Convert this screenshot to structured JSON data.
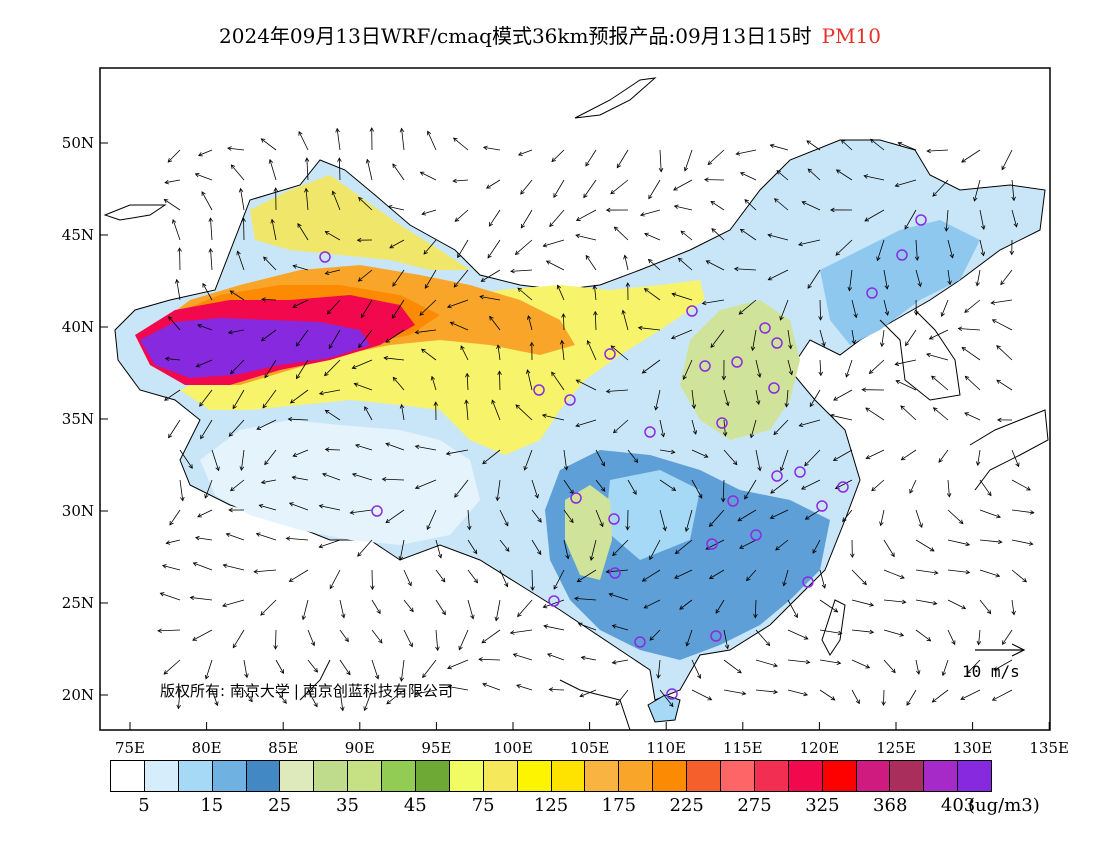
{
  "header": {
    "title": "2024年09月13日WRF/cmaq模式36km预报产品:09月13日15时",
    "pollutant": "PM10",
    "pollutant_color": "#e8312b"
  },
  "axes": {
    "lon_labels": [
      "75E",
      "80E",
      "85E",
      "90E",
      "95E",
      "100E",
      "105E",
      "110E",
      "115E",
      "120E",
      "125E",
      "130E",
      "135E"
    ],
    "lat_labels": [
      "50N",
      "45N",
      "40N",
      "35N",
      "30N",
      "25N",
      "20N"
    ]
  },
  "copyright": {
    "label": "版权所有:",
    "org1": "南京大学",
    "org2": "南京创蓝科技有限公司"
  },
  "wind_reference": {
    "label": "10 m/s"
  },
  "legend": {
    "colors": [
      "#ffffff",
      "#d6eefb",
      "#a6d9f5",
      "#6fb2e2",
      "#4188c5",
      "#dfeabc",
      "#bfdc8d",
      "#c6e184",
      "#93cc55",
      "#6ea835",
      "#f1fb62",
      "#f5e85a",
      "#fcf400",
      "#fee200",
      "#f9b340",
      "#f9a52a",
      "#fc8a02",
      "#f45f2c",
      "#fe6567",
      "#f22e52",
      "#f2084c",
      "#fd0101",
      "#cf1b7f",
      "#a92e5c",
      "#a52ac7",
      "#8729df"
    ],
    "labels": [
      "5",
      "15",
      "25",
      "35",
      "45",
      "75",
      "125",
      "175",
      "225",
      "275",
      "325",
      "368",
      "403"
    ],
    "unit": "(ug/m3)"
  }
}
